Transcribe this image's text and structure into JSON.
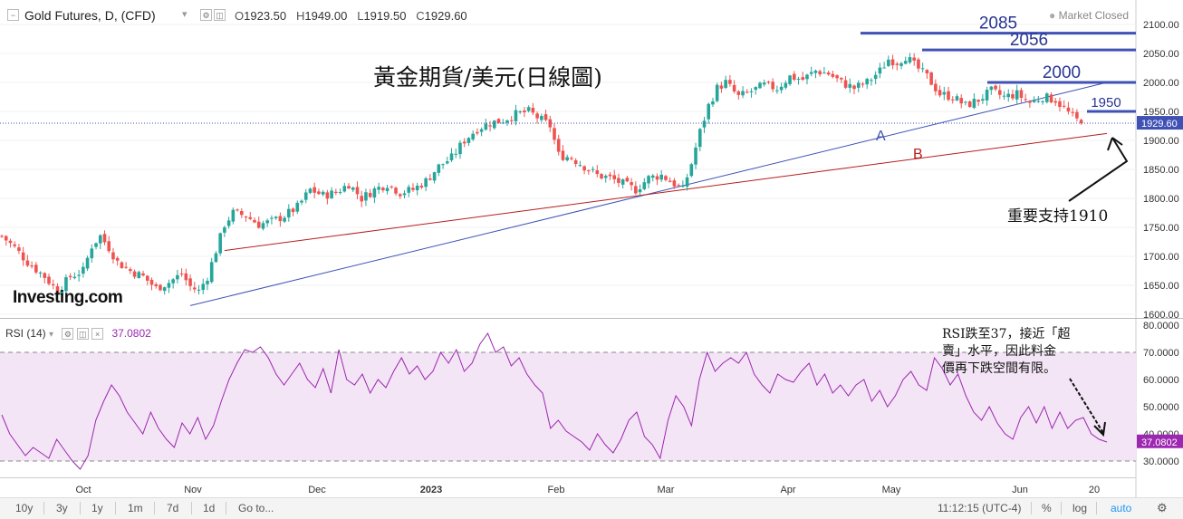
{
  "header": {
    "title": "Gold Futures, D, (CFD)",
    "ohlc": {
      "open_label": "O",
      "open": "1923.50",
      "high_label": "H",
      "high": "1949.00",
      "low_label": "L",
      "low": "1919.50",
      "close_label": "C",
      "close": "1929.60"
    },
    "market_status": "Market Closed"
  },
  "annotations": {
    "chinese_title": "黃金期貨/美元(日線圖)",
    "levels": [
      "2085",
      "2056",
      "2000",
      "1950"
    ],
    "line_a": "A",
    "line_b": "B",
    "support_note": "重要支持1910",
    "rsi_note_line1": "RSI跌至37，接近「超",
    "rsi_note_line2": "賣」水平，因此料金",
    "rsi_note_line3": "價再下跌空間有限。"
  },
  "price_axis": {
    "ticks": [
      "2100.00",
      "2050.00",
      "2000.00",
      "1950.00",
      "1900.00",
      "1850.00",
      "1800.00",
      "1750.00",
      "1700.00",
      "1650.00",
      "1600.00"
    ],
    "current_price": "1929.60"
  },
  "rsi": {
    "label": "RSI (14)",
    "value": "37.0802",
    "ticks": [
      "80.0000",
      "70.0000",
      "60.0000",
      "50.0000",
      "40.0000",
      "30.0000"
    ]
  },
  "time_axis": [
    "Oct",
    "Nov",
    "Dec",
    "2023",
    "Feb",
    "Mar",
    "Apr",
    "May",
    "Jun",
    "20"
  ],
  "bottom_bar": {
    "timeframes": [
      "10y",
      "3y",
      "1y",
      "1m",
      "7d",
      "1d",
      "Go to..."
    ],
    "clock": "11:12:15 (UTC-4)",
    "percent": "%",
    "log": "log",
    "auto": "auto"
  },
  "watermark": "Investing.com",
  "colors": {
    "up": "#26a69a",
    "down": "#ef5350",
    "rsi_line": "#9c27b0",
    "rsi_band": "#f3e5f5",
    "level_line": "#3f51b5",
    "trend_a": "#3f51b5",
    "trend_b": "#b71c1c",
    "price_tag": "#3f51b5",
    "rsi_tag": "#9c27b0"
  },
  "chart_data": [
    {
      "type": "candlestick",
      "title": "Gold Futures, D, (CFD)",
      "ylim": [
        1600,
        2110
      ],
      "x_ticks": [
        "Oct",
        "Nov",
        "Dec",
        "2023",
        "Feb",
        "Mar",
        "Apr",
        "May",
        "Jun",
        "20"
      ],
      "close_path": [
        {
          "t": 0,
          "close": 1735
        },
        {
          "t": 3,
          "close": 1715
        },
        {
          "t": 6,
          "close": 1690
        },
        {
          "t": 10,
          "close": 1665
        },
        {
          "t": 13,
          "close": 1640
        },
        {
          "t": 16,
          "close": 1665
        },
        {
          "t": 19,
          "close": 1675
        },
        {
          "t": 21,
          "close": 1718
        },
        {
          "t": 23,
          "close": 1735
        },
        {
          "t": 25,
          "close": 1715
        },
        {
          "t": 27,
          "close": 1690
        },
        {
          "t": 30,
          "close": 1675
        },
        {
          "t": 33,
          "close": 1665
        },
        {
          "t": 36,
          "close": 1645
        },
        {
          "t": 39,
          "close": 1655
        },
        {
          "t": 42,
          "close": 1670
        },
        {
          "t": 44,
          "close": 1648
        },
        {
          "t": 46,
          "close": 1640
        },
        {
          "t": 48,
          "close": 1665
        },
        {
          "t": 50,
          "close": 1710
        },
        {
          "t": 52,
          "close": 1755
        },
        {
          "t": 54,
          "close": 1775
        },
        {
          "t": 57,
          "close": 1770
        },
        {
          "t": 60,
          "close": 1755
        },
        {
          "t": 63,
          "close": 1760
        },
        {
          "t": 66,
          "close": 1770
        },
        {
          "t": 69,
          "close": 1785
        },
        {
          "t": 72,
          "close": 1815
        },
        {
          "t": 75,
          "close": 1805
        },
        {
          "t": 78,
          "close": 1810
        },
        {
          "t": 81,
          "close": 1825
        },
        {
          "t": 84,
          "close": 1800
        },
        {
          "t": 87,
          "close": 1815
        },
        {
          "t": 90,
          "close": 1825
        },
        {
          "t": 93,
          "close": 1810
        },
        {
          "t": 96,
          "close": 1815
        },
        {
          "t": 99,
          "close": 1830
        },
        {
          "t": 102,
          "close": 1855
        },
        {
          "t": 105,
          "close": 1870
        },
        {
          "t": 108,
          "close": 1900
        },
        {
          "t": 111,
          "close": 1920
        },
        {
          "t": 114,
          "close": 1930
        },
        {
          "t": 117,
          "close": 1935
        },
        {
          "t": 120,
          "close": 1945
        },
        {
          "t": 123,
          "close": 1950
        },
        {
          "t": 126,
          "close": 1935
        },
        {
          "t": 128,
          "close": 1925
        },
        {
          "t": 130,
          "close": 1875
        },
        {
          "t": 133,
          "close": 1870
        },
        {
          "t": 136,
          "close": 1855
        },
        {
          "t": 139,
          "close": 1840
        },
        {
          "t": 142,
          "close": 1835
        },
        {
          "t": 145,
          "close": 1825
        },
        {
          "t": 148,
          "close": 1815
        },
        {
          "t": 151,
          "close": 1835
        },
        {
          "t": 154,
          "close": 1840
        },
        {
          "t": 157,
          "close": 1825
        },
        {
          "t": 159,
          "close": 1815
        },
        {
          "t": 161,
          "close": 1860
        },
        {
          "t": 163,
          "close": 1915
        },
        {
          "t": 165,
          "close": 1960
        },
        {
          "t": 167,
          "close": 1990
        },
        {
          "t": 169,
          "close": 2000
        },
        {
          "t": 172,
          "close": 1975
        },
        {
          "t": 175,
          "close": 1985
        },
        {
          "t": 178,
          "close": 1995
        },
        {
          "t": 181,
          "close": 1990
        },
        {
          "t": 184,
          "close": 2010
        },
        {
          "t": 187,
          "close": 2005
        },
        {
          "t": 190,
          "close": 2020
        },
        {
          "t": 193,
          "close": 2015
        },
        {
          "t": 196,
          "close": 2000
        },
        {
          "t": 199,
          "close": 1990
        },
        {
          "t": 202,
          "close": 2000
        },
        {
          "t": 205,
          "close": 2020
        },
        {
          "t": 207,
          "close": 2040
        },
        {
          "t": 209,
          "close": 2035
        },
        {
          "t": 211,
          "close": 2045
        },
        {
          "t": 213,
          "close": 2030
        },
        {
          "t": 216,
          "close": 2010
        },
        {
          "t": 219,
          "close": 1980
        },
        {
          "t": 222,
          "close": 1975
        },
        {
          "t": 225,
          "close": 1960
        },
        {
          "t": 228,
          "close": 1970
        },
        {
          "t": 231,
          "close": 1985
        },
        {
          "t": 234,
          "close": 1975
        },
        {
          "t": 237,
          "close": 1980
        },
        {
          "t": 240,
          "close": 1965
        },
        {
          "t": 243,
          "close": 1975
        },
        {
          "t": 246,
          "close": 1970
        },
        {
          "t": 248,
          "close": 1955
        },
        {
          "t": 250,
          "close": 1940
        },
        {
          "t": 252,
          "close": 1929.6
        }
      ],
      "trendlines": [
        {
          "name": "A",
          "from": {
            "t": 44,
            "price": 1615
          },
          "to": {
            "t": 258,
            "price": 2000
          }
        },
        {
          "name": "B",
          "from": {
            "t": 52,
            "price": 1710
          },
          "to": {
            "t": 258,
            "price": 1912
          }
        }
      ],
      "horizontal_levels": [
        2085,
        2056,
        2000,
        1950
      ],
      "current_price": 1929.6
    },
    {
      "type": "line",
      "title": "RSI (14)",
      "ylim": [
        25,
        82
      ],
      "bands": [
        30,
        70
      ],
      "last_value": 37.0802,
      "series": [
        {
          "values": [
            47,
            40,
            36,
            32,
            35,
            33,
            31,
            38,
            34,
            30,
            27,
            32,
            45,
            52,
            58,
            54,
            48,
            44,
            40,
            48,
            42,
            38,
            35,
            44,
            40,
            46,
            38,
            43,
            52,
            60,
            66,
            71,
            70,
            72,
            68,
            62,
            58,
            62,
            66,
            60,
            57,
            64,
            55,
            71,
            60,
            58,
            62,
            55,
            60,
            57,
            63,
            68,
            62,
            65,
            60,
            63,
            70,
            66,
            71,
            63,
            66,
            73,
            77,
            70,
            72,
            65,
            68,
            62,
            58,
            55,
            42,
            45,
            41,
            39,
            37,
            34,
            40,
            36,
            33,
            38,
            45,
            48,
            39,
            36,
            31,
            45,
            54,
            50,
            43,
            60,
            70,
            63,
            66,
            68,
            66,
            70,
            62,
            58,
            55,
            62,
            60,
            59,
            63,
            66,
            58,
            62,
            55,
            58,
            54,
            58,
            60,
            52,
            56,
            50,
            54,
            60,
            63,
            58,
            56,
            68,
            64,
            58,
            62,
            54,
            48,
            45,
            50,
            44,
            40,
            38,
            46,
            50,
            44,
            50,
            42,
            48,
            42,
            45,
            46,
            40,
            38,
            37
          ]
        }
      ]
    }
  ]
}
